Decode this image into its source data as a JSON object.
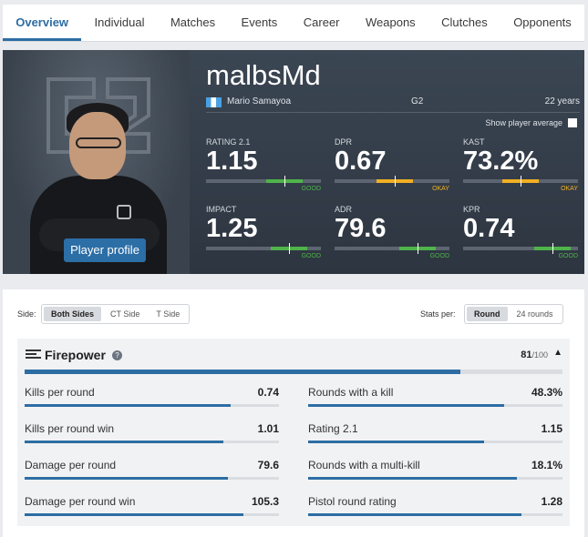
{
  "tabs": [
    "Overview",
    "Individual",
    "Matches",
    "Events",
    "Career",
    "Weapons",
    "Clutches",
    "Opponents"
  ],
  "player": {
    "nickname": "malbsMd",
    "real_name": "Mario Samayoa",
    "team": "G2",
    "age": "22 years",
    "profile_button": "Player profile",
    "show_average_label": "Show player average",
    "country_flag": "flag-icon"
  },
  "summary": [
    {
      "label": "RATING 2.1",
      "value": "1.15",
      "rating": "GOOD",
      "level": 0.68
    },
    {
      "label": "DPR",
      "value": "0.67",
      "rating": "OKAY",
      "level": 0.52
    },
    {
      "label": "KAST",
      "value": "73.2%",
      "rating": "OKAY",
      "level": 0.5
    },
    {
      "label": "IMPACT",
      "value": "1.25",
      "rating": "GOOD",
      "level": 0.72
    },
    {
      "label": "ADR",
      "value": "79.6",
      "rating": "GOOD",
      "level": 0.72
    },
    {
      "label": "KPR",
      "value": "0.74",
      "rating": "GOOD",
      "level": 0.78
    }
  ],
  "colors": {
    "good": "#4fb44a",
    "okay": "#f2b023",
    "accent": "#2d6da3"
  },
  "filters": {
    "side_label": "Side:",
    "sides": [
      "Both Sides",
      "CT Side",
      "T Side"
    ],
    "stats_per_label": "Stats per:",
    "per_options": [
      "Round",
      "24 rounds"
    ]
  },
  "firepower": {
    "title": "Firepower",
    "score": "81",
    "score_max": "/100",
    "score_fraction": 0.81,
    "left": [
      {
        "label": "Kills per round",
        "value": "0.74",
        "fraction": 0.81
      },
      {
        "label": "Kills per round win",
        "value": "1.01",
        "fraction": 0.78
      },
      {
        "label": "Damage per round",
        "value": "79.6",
        "fraction": 0.8
      },
      {
        "label": "Damage per round win",
        "value": "105.3",
        "fraction": 0.86
      }
    ],
    "right": [
      {
        "label": "Rounds with a kill",
        "value": "48.3%",
        "fraction": 0.77
      },
      {
        "label": "Rating 2.1",
        "value": "1.15",
        "fraction": 0.69
      },
      {
        "label": "Rounds with a multi-kill",
        "value": "18.1%",
        "fraction": 0.82
      },
      {
        "label": "Pistol round rating",
        "value": "1.28",
        "fraction": 0.84
      }
    ]
  }
}
